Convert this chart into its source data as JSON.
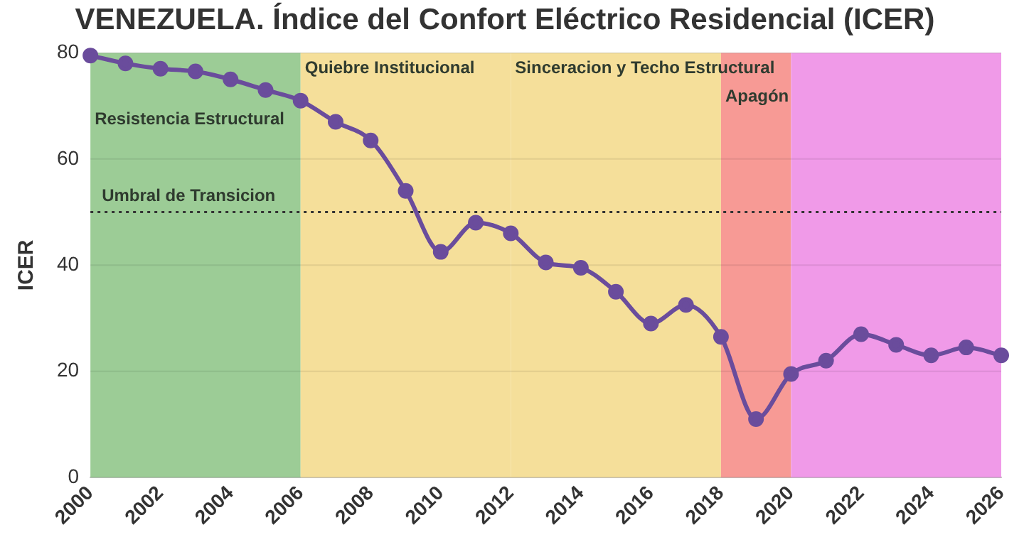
{
  "chart_data": {
    "type": "line",
    "title": "VENEZUELA. Índice del Confort Eléctrico Residencial (ICER)",
    "ylabel": "ICER",
    "x": [
      2000,
      2001,
      2002,
      2003,
      2004,
      2005,
      2006,
      2007,
      2008,
      2009,
      2010,
      2011,
      2012,
      2013,
      2014,
      2015,
      2016,
      2017,
      2018,
      2019,
      2020,
      2021,
      2022,
      2023,
      2024,
      2025,
      2026
    ],
    "series": [
      {
        "color": "#6a4c9c",
        "values": [
          79.5,
          78,
          77,
          76.5,
          75,
          73,
          71,
          67,
          63.5,
          54,
          42.5,
          48,
          46,
          40.5,
          39.5,
          35,
          29,
          32.5,
          26.5,
          11,
          19.5,
          22,
          27,
          25,
          23,
          24.5,
          23
        ]
      }
    ],
    "xlim": [
      2000,
      2026
    ],
    "xticks": [
      2000,
      2002,
      2004,
      2006,
      2008,
      2010,
      2012,
      2014,
      2016,
      2018,
      2020,
      2022,
      2024,
      2026
    ],
    "ylim": [
      0,
      80
    ],
    "yticks": [
      0,
      20,
      40,
      60,
      80
    ],
    "grid": "y",
    "legend": false,
    "marker": "circle",
    "line_style": "solid",
    "ref_lines": [
      {
        "axis": "y",
        "value": 50,
        "label": "Umbral de Transicion",
        "line_style": "dotted",
        "color": "#333333"
      }
    ],
    "bands": [
      {
        "axis": "x",
        "from": 2000,
        "to": 2006,
        "label": "Resistencia Estructural",
        "color": "#9ccc96"
      },
      {
        "axis": "x",
        "from": 2006,
        "to": 2012,
        "label": "Quiebre Institucional",
        "color": "#f5df9a"
      },
      {
        "axis": "x",
        "from": 2012,
        "to": 2018,
        "label": "Sinceracion y Techo Estructural",
        "color": "#f5df9a"
      },
      {
        "axis": "x",
        "from": 2018,
        "to": 2020,
        "label": "Apagón",
        "color": "#f79a95"
      },
      {
        "axis": "x",
        "from": 2020,
        "to": 2026,
        "color": "#f09ae8"
      }
    ]
  }
}
